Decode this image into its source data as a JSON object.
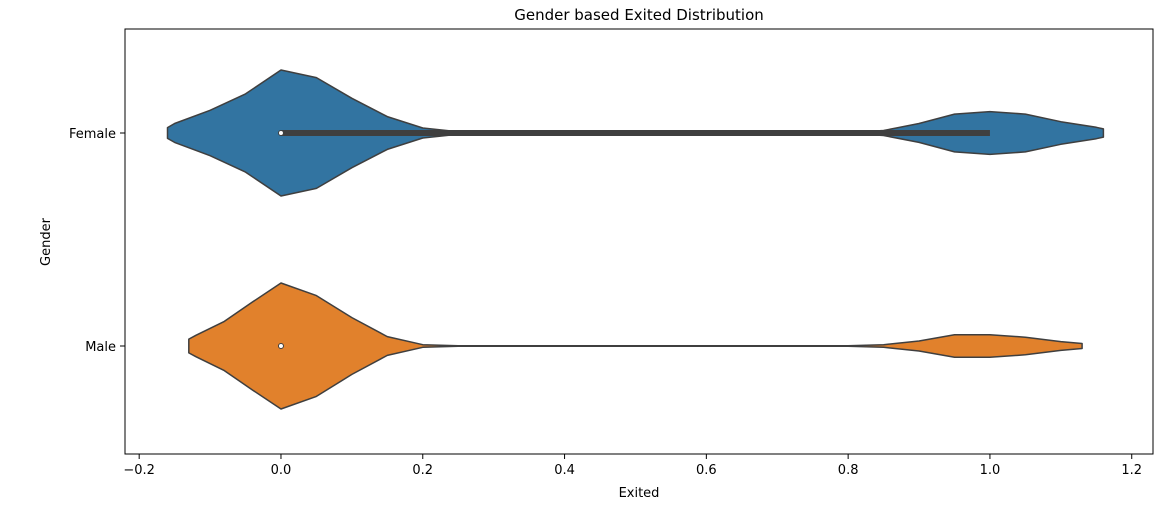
{
  "chart_data": {
    "type": "violin",
    "title": "Gender based Exited Distribution",
    "xlabel": "Exited",
    "ylabel": "Gender",
    "xlim": [
      -0.22,
      1.23
    ],
    "xticks": [
      -0.2,
      0.0,
      0.2,
      0.4,
      0.6,
      0.8,
      1.0,
      1.2
    ],
    "xtick_labels": [
      "−0.2",
      "0.0",
      "0.2",
      "0.4",
      "0.6",
      "0.8",
      "1.0",
      "1.2"
    ],
    "categories": [
      "Female",
      "Male"
    ],
    "grid": false,
    "series": [
      {
        "category": "Female",
        "color": "#3274a1",
        "median": 0.0,
        "iqr": [
          0.0,
          1.0
        ],
        "density": [
          [
            -0.16,
            0.085
          ],
          [
            -0.15,
            0.15
          ],
          [
            -0.1,
            0.36
          ],
          [
            -0.05,
            0.62
          ],
          [
            0.0,
            1.0
          ],
          [
            0.05,
            0.88
          ],
          [
            0.1,
            0.55
          ],
          [
            0.15,
            0.26
          ],
          [
            0.2,
            0.08
          ],
          [
            0.25,
            0.02
          ],
          [
            0.3,
            0.005
          ],
          [
            0.8,
            0.005
          ],
          [
            0.85,
            0.04
          ],
          [
            0.9,
            0.15
          ],
          [
            0.95,
            0.3
          ],
          [
            1.0,
            0.34
          ],
          [
            1.05,
            0.3
          ],
          [
            1.1,
            0.18
          ],
          [
            1.15,
            0.09
          ],
          [
            1.16,
            0.065
          ]
        ]
      },
      {
        "category": "Male",
        "color": "#e1812c",
        "median": 0.0,
        "iqr": [
          0.0,
          0.0
        ],
        "density": [
          [
            -0.13,
            0.11
          ],
          [
            -0.12,
            0.17
          ],
          [
            -0.08,
            0.39
          ],
          [
            -0.04,
            0.7
          ],
          [
            0.0,
            1.0
          ],
          [
            0.05,
            0.8
          ],
          [
            0.1,
            0.45
          ],
          [
            0.15,
            0.15
          ],
          [
            0.2,
            0.02
          ],
          [
            0.25,
            0.005
          ],
          [
            0.8,
            0.005
          ],
          [
            0.85,
            0.02
          ],
          [
            0.9,
            0.08
          ],
          [
            0.95,
            0.18
          ],
          [
            1.0,
            0.18
          ],
          [
            1.05,
            0.14
          ],
          [
            1.1,
            0.07
          ],
          [
            1.13,
            0.04
          ]
        ]
      }
    ]
  }
}
